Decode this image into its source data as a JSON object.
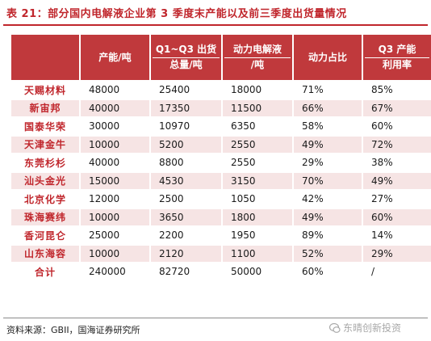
{
  "title": "表 21：部分国内电解液企业第 3 季度末产能以及前三季度出货量情况",
  "table": {
    "headers": [
      {
        "line1": "",
        "line2": ""
      },
      {
        "line1": "产能/吨",
        "line2": ""
      },
      {
        "line1": "Q1~Q3 出货",
        "line2": "总量/吨"
      },
      {
        "line1": "动力电解液",
        "line2": "/吨"
      },
      {
        "line1": "动力占比",
        "line2": ""
      },
      {
        "line1": "Q3 产能",
        "line2": "利用率"
      }
    ],
    "rows": [
      {
        "name": "天赐材料",
        "capacity": "48000",
        "shipment": "25400",
        "power": "18000",
        "share": "71%",
        "util": "85%"
      },
      {
        "name": "新宙邦",
        "capacity": "40000",
        "shipment": "17350",
        "power": "11500",
        "share": "66%",
        "util": "67%"
      },
      {
        "name": "国泰华荣",
        "capacity": "30000",
        "shipment": "10970",
        "power": "6350",
        "share": "58%",
        "util": "60%"
      },
      {
        "name": "天津金牛",
        "capacity": "10000",
        "shipment": "5200",
        "power": "2550",
        "share": "49%",
        "util": "72%"
      },
      {
        "name": "东莞杉杉",
        "capacity": "40000",
        "shipment": "8800",
        "power": "2550",
        "share": "29%",
        "util": "38%"
      },
      {
        "name": "汕头金光",
        "capacity": "15000",
        "shipment": "4530",
        "power": "3150",
        "share": "70%",
        "util": "49%"
      },
      {
        "name": "北京化学",
        "capacity": "12000",
        "shipment": "2500",
        "power": "1050",
        "share": "42%",
        "util": "27%"
      },
      {
        "name": "珠海赛纬",
        "capacity": "10000",
        "shipment": "3650",
        "power": "1800",
        "share": "49%",
        "util": "60%"
      },
      {
        "name": "香河昆仑",
        "capacity": "25000",
        "shipment": "2200",
        "power": "1950",
        "share": "89%",
        "util": "14%"
      },
      {
        "name": "山东海容",
        "capacity": "10000",
        "shipment": "2120",
        "power": "1100",
        "share": "52%",
        "util": "29%"
      },
      {
        "name": "合计",
        "capacity": "240000",
        "shipment": "82720",
        "power": "50000",
        "share": "60%",
        "util": "/"
      }
    ]
  },
  "source": "资料来源：GBII，国海证券研究所",
  "watermark": "东晴创新投资",
  "colors": {
    "accent": "#c0262c",
    "header_bg": "#c0393c",
    "stripe": "#f6e4e4"
  }
}
